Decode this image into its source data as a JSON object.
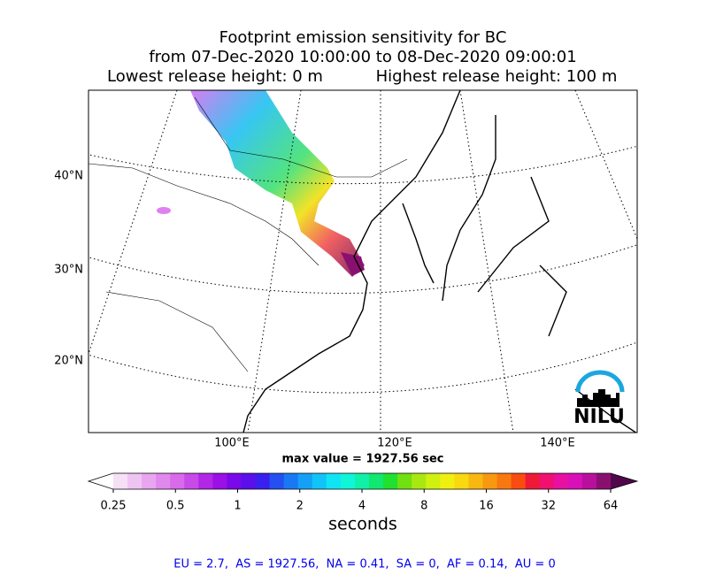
{
  "header": {
    "title": "Footprint emission sensitivity for BC",
    "period": "from 07-Dec-2020 10:00:00 to 08-Dec-2020 09:00:01",
    "lowest_release": "Lowest release height: 0 m",
    "highest_release": "Highest release height: 100 m"
  },
  "map": {
    "lat_labels": [
      "40°N",
      "30°N",
      "20°N"
    ],
    "lon_labels": [
      "100°E",
      "120°E",
      "140°E"
    ],
    "max_value_label": "max value = 1927.56 sec",
    "logo": "NILU"
  },
  "colorbar": {
    "ticks": [
      0.25,
      0.5,
      1,
      2,
      4,
      8,
      16,
      32,
      64
    ],
    "label": "seconds",
    "colors": [
      "#ffffff",
      "#f6e0f6",
      "#efc4f2",
      "#e9a6f0",
      "#e188ee",
      "#d86aec",
      "#c84ae8",
      "#b226e6",
      "#9a10e6",
      "#7a08e8",
      "#5a10ea",
      "#3a20ee",
      "#2450f2",
      "#1a78f4",
      "#14a0f6",
      "#10c4f8",
      "#10e4f4",
      "#10f4d8",
      "#10f0a8",
      "#10e870",
      "#20e030",
      "#70e010",
      "#a8e810",
      "#d0f010",
      "#f0f010",
      "#f8d810",
      "#f8b810",
      "#f89810",
      "#f87810",
      "#f84c10",
      "#f01838",
      "#f01070",
      "#e810a0",
      "#d810b8",
      "#b8109c",
      "#8a1070",
      "#50084a"
    ]
  },
  "footer": "EU = 2.7,  AS = 1927.56,  NA = 0.41,  SA = 0,  AF = 0.14,  AU = 0"
}
